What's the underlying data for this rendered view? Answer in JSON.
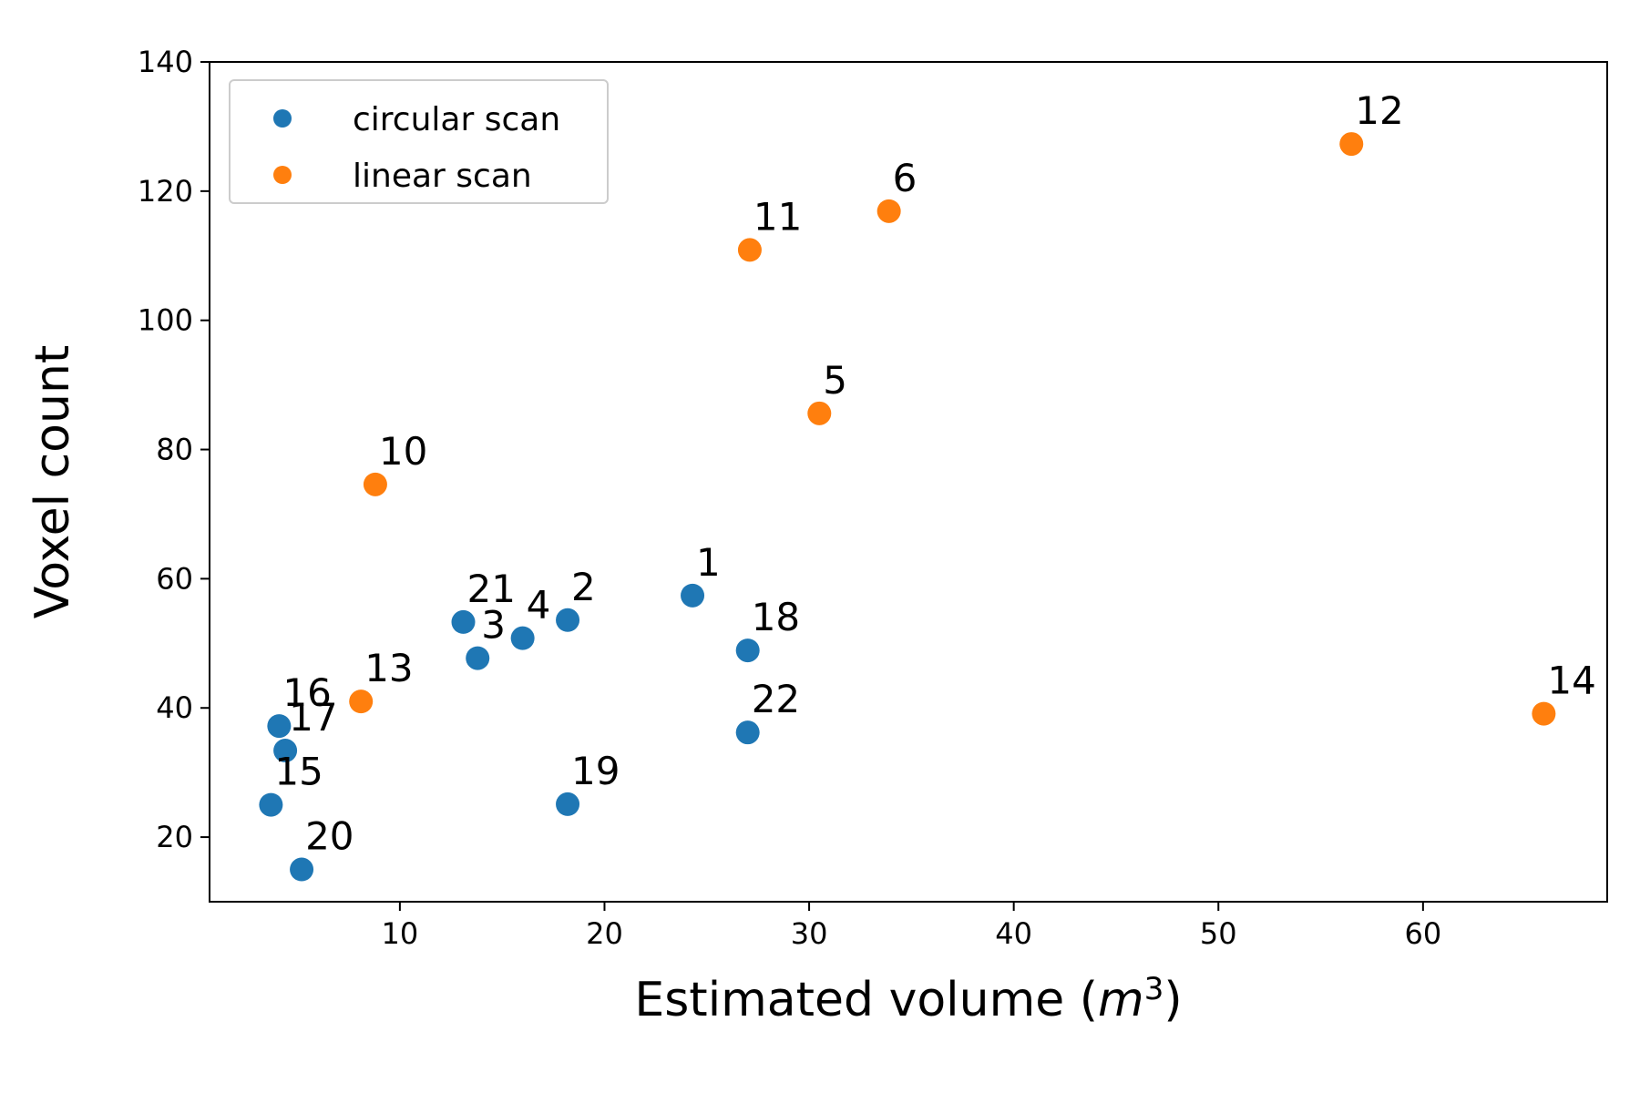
{
  "chart_data": {
    "type": "scatter",
    "title": "",
    "xlabel": {
      "prefix": "Estimated volume (",
      "symbol": "m",
      "exponent": "3",
      "suffix": ")"
    },
    "ylabel": "Voxel count",
    "xlim": [
      0.7,
      69
    ],
    "ylim": [
      10,
      140
    ],
    "xticks": [
      10,
      20,
      30,
      40,
      50,
      60
    ],
    "yticks": [
      20,
      40,
      60,
      80,
      100,
      120,
      140
    ],
    "grid": false,
    "legend_position": "top-left",
    "series": [
      {
        "name": "circular scan",
        "color": "#1f77b4",
        "points": [
          {
            "label": "1",
            "x": 24.3,
            "y": 57.4
          },
          {
            "label": "2",
            "x": 18.2,
            "y": 53.6
          },
          {
            "label": "3",
            "x": 13.8,
            "y": 47.7
          },
          {
            "label": "4",
            "x": 16.0,
            "y": 50.8
          },
          {
            "label": "15",
            "x": 3.7,
            "y": 25.0
          },
          {
            "label": "16",
            "x": 4.1,
            "y": 37.2
          },
          {
            "label": "17",
            "x": 4.4,
            "y": 33.4
          },
          {
            "label": "18",
            "x": 27.0,
            "y": 48.9
          },
          {
            "label": "19",
            "x": 18.2,
            "y": 25.1
          },
          {
            "label": "20",
            "x": 5.2,
            "y": 15.0
          },
          {
            "label": "21",
            "x": 13.1,
            "y": 53.3
          },
          {
            "label": "22",
            "x": 27.0,
            "y": 36.2
          }
        ]
      },
      {
        "name": "linear scan",
        "color": "#ff7f0e",
        "points": [
          {
            "label": "5",
            "x": 30.5,
            "y": 85.6
          },
          {
            "label": "6",
            "x": 33.9,
            "y": 116.9
          },
          {
            "label": "10",
            "x": 8.8,
            "y": 74.6
          },
          {
            "label": "11",
            "x": 27.1,
            "y": 110.9
          },
          {
            "label": "12",
            "x": 56.5,
            "y": 127.3
          },
          {
            "label": "13",
            "x": 8.1,
            "y": 41.0
          },
          {
            "label": "14",
            "x": 65.9,
            "y": 39.1
          }
        ]
      }
    ]
  }
}
